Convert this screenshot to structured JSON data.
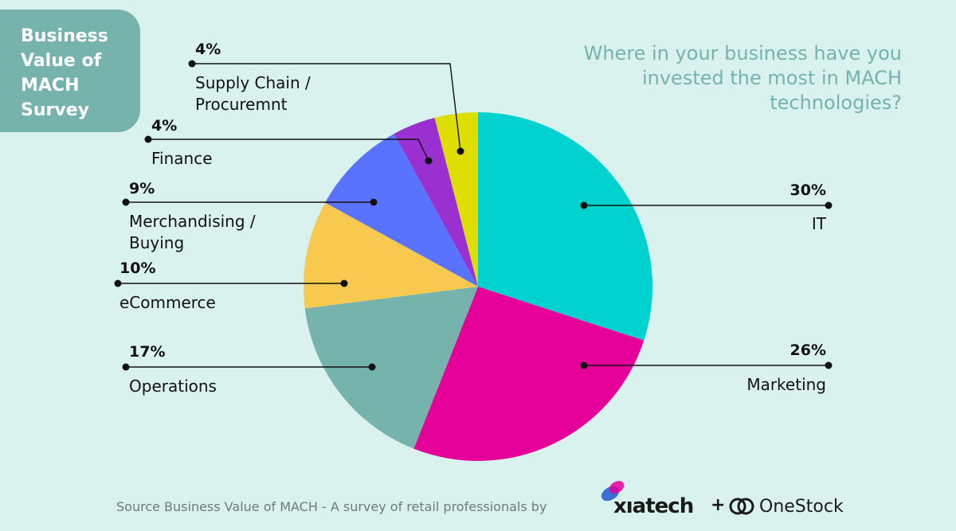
{
  "badge": {
    "lines": [
      "Business",
      "Value of",
      "MACH",
      "Survey"
    ]
  },
  "question": "Where in your business have you invested the most in MACH technologies?",
  "footer": "Source Business Value of MACH - A survey of retail professionals by",
  "logos": {
    "brand1": "xıatech",
    "plus": "+",
    "brand2": "OneStock"
  },
  "chart_data": {
    "type": "pie",
    "slices": [
      {
        "label": "IT",
        "label_lines": [
          "IT"
        ],
        "value": 30,
        "value_label": "30%",
        "color": "#00d3cf"
      },
      {
        "label": "Marketing",
        "label_lines": [
          "Marketing"
        ],
        "value": 26,
        "value_label": "26%",
        "color": "#e6009a"
      },
      {
        "label": "Operations",
        "label_lines": [
          "Operations"
        ],
        "value": 17,
        "value_label": "17%",
        "color": "#76b3ac"
      },
      {
        "label": "eCommerce",
        "label_lines": [
          "eCommerce"
        ],
        "value": 10,
        "value_label": "10%",
        "color": "#f7c94f"
      },
      {
        "label": "Merchandising / Buying",
        "label_lines": [
          "Merchandising /",
          "Buying"
        ],
        "value": 9,
        "value_label": "9%",
        "color": "#5a73ff"
      },
      {
        "label": "Finance",
        "label_lines": [
          "Finance"
        ],
        "value": 4,
        "value_label": "4%",
        "color": "#9a30d0"
      },
      {
        "label": "Supply Chain / Procuremnt",
        "label_lines": [
          "Supply Chain /",
          "Procuremnt"
        ],
        "value": 4,
        "value_label": "4%",
        "color": "#dede00"
      }
    ]
  }
}
